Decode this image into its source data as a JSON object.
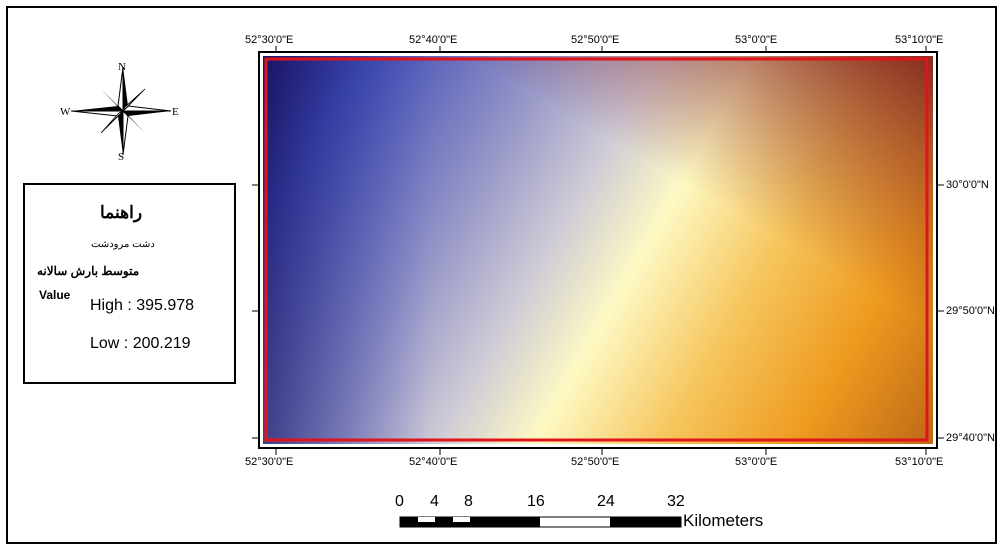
{
  "map": {
    "frame_color": "#000000",
    "boundary_color": "#e0141b",
    "raster_colors": [
      "#1e1a73",
      "#3f4ab5",
      "#8a8cc8",
      "#d4d2dc",
      "#fdf8c2",
      "#f6c25a",
      "#ef9a20",
      "#a83a1c",
      "#7a1c1e"
    ]
  },
  "coords": {
    "top": [
      "52°30'0\"E",
      "52°40'0\"E",
      "52°50'0\"E",
      "53°0'0\"E",
      "53°10'0\"E"
    ],
    "bottom": [
      "52°30'0\"E",
      "52°40'0\"E",
      "52°50'0\"E",
      "53°0'0\"E",
      "53°10'0\"E"
    ],
    "right": [
      "30°0'0\"N",
      "29°50'0\"N",
      "29°40'0\"N"
    ]
  },
  "north_arrow": {
    "n": "N",
    "s": "S",
    "e": "E",
    "w": "W"
  },
  "legend": {
    "title": "راهنما",
    "boundary_label": "دشت مرودشت",
    "raster_title": "متوسط بارش سالانه",
    "value_label": "Value",
    "high": "High : 395.978",
    "low": "Low : 200.219"
  },
  "scale_bar": {
    "ticks": [
      "0",
      "4",
      "8",
      "16",
      "24",
      "32"
    ],
    "unit": "Kilometers"
  }
}
